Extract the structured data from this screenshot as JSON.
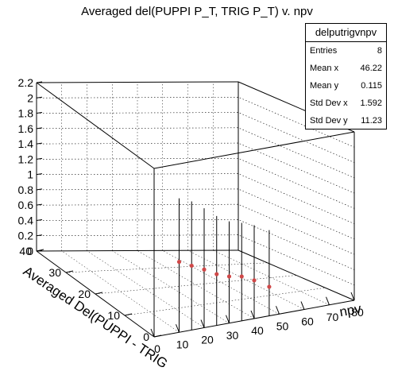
{
  "title": "Averaged del(PUPPI P_T, TRIG P_T) v. npv",
  "stats": {
    "name": "delputrigvnpv",
    "rows": [
      {
        "label": "Entries",
        "value": "8"
      },
      {
        "label": "Mean x",
        "value": "46.22"
      },
      {
        "label": "Mean y",
        "value": "0.115"
      },
      {
        "label": "Std Dev x",
        "value": "1.592"
      },
      {
        "label": "Std Dev y",
        "value": "11.23"
      }
    ]
  },
  "chart_data": {
    "type": "scatter",
    "title": "Averaged del(PUPPI P_T, TRIG P_T) v. npv",
    "x_axis": {
      "label": "npv",
      "min": 0,
      "max": 80,
      "ticks": [
        "0",
        "10",
        "20",
        "30",
        "40",
        "50",
        "60",
        "70",
        "80"
      ]
    },
    "y_axis": {
      "label": "Averaged Del(PUPPI - TRIG",
      "min": 0,
      "max": 40,
      "ticks": [
        "0",
        "10",
        "20",
        "30",
        "40"
      ]
    },
    "z_axis": {
      "min": 0,
      "max": 2.2,
      "ticks": [
        "0",
        "0.2",
        "0.4",
        "0.6",
        "0.8",
        "1",
        "1.2",
        "1.4",
        "1.6",
        "1.8",
        "2",
        "2.2"
      ]
    },
    "grid": true,
    "marker_color": "#d04848",
    "points": [
      {
        "x": 10,
        "z": 0.92,
        "err_low": 0.92,
        "err_high": 0.83
      },
      {
        "x": 15,
        "z": 0.84,
        "err_low": 0.84,
        "err_high": 0.84
      },
      {
        "x": 20,
        "z": 0.76,
        "err_low": 0.76,
        "err_high": 0.8
      },
      {
        "x": 25,
        "z": 0.67,
        "err_low": 0.67,
        "err_high": 0.76
      },
      {
        "x": 30,
        "z": 0.61,
        "err_low": 0.61,
        "err_high": 0.72
      },
      {
        "x": 35,
        "z": 0.58,
        "err_low": 0.58,
        "err_high": 0.7
      },
      {
        "x": 40,
        "z": 0.5,
        "err_low": 0.5,
        "err_high": 0.72
      },
      {
        "x": 46,
        "z": 0.38,
        "err_low": 0.38,
        "err_high": 0.74
      }
    ]
  }
}
